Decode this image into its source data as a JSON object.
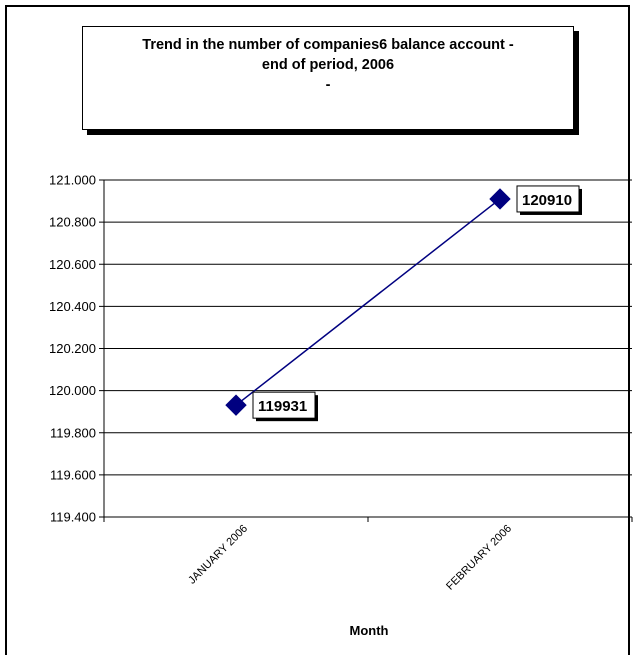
{
  "chart_data": {
    "type": "line",
    "title": "Trend in the number of companies6 balance account - end of period, 2006",
    "title_lines": [
      "Trend in the number of companies6 balance account -",
      "end of period, 2006",
      "-"
    ],
    "xlabel": "Month",
    "ylabel": "",
    "categories": [
      "JANUARY 2006",
      "FEBRUARY 2006"
    ],
    "series": [
      {
        "values": [
          119931,
          120910
        ],
        "data_labels": [
          "119931",
          "120910"
        ],
        "color": "#000080"
      }
    ],
    "ylim": [
      119400,
      121000
    ],
    "y_ticks": [
      119400,
      119600,
      119800,
      120000,
      120200,
      120400,
      120600,
      120800,
      121000
    ],
    "y_tick_labels": [
      "119.400",
      "119.600",
      "119.800",
      "120.000",
      "120.200",
      "120.400",
      "120.600",
      "120.800",
      "121.000"
    ],
    "grid": true,
    "legend": "none",
    "marker": "diamond"
  }
}
